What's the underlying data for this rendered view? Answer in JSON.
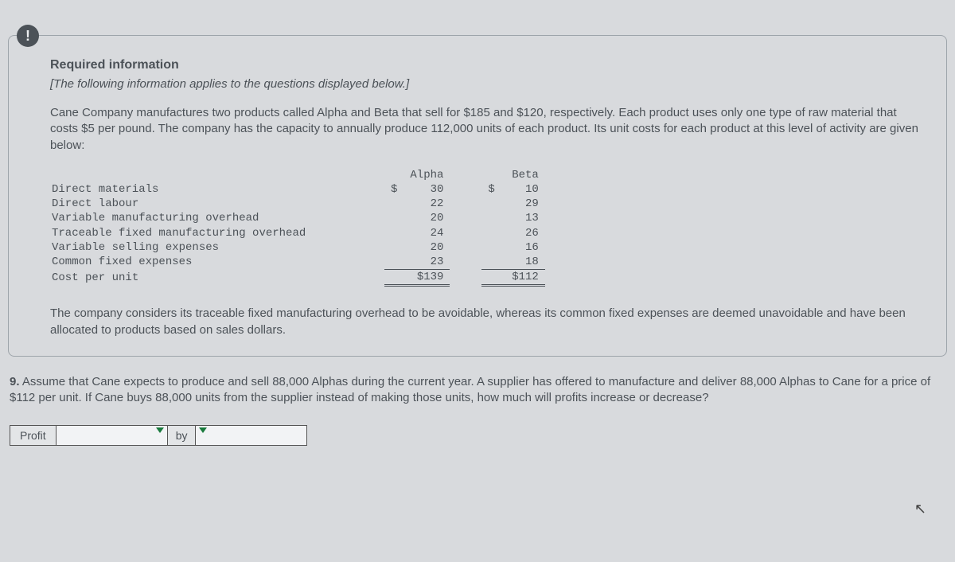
{
  "badge": "!",
  "required_title": "Required information",
  "subtitle": "[The following information applies to the questions displayed below.]",
  "narrative1": "Cane Company manufactures two products called Alpha and Beta that sell for $185 and $120, respectively. Each product uses only one type of raw material that costs $5 per pound. The company has the capacity to annually produce 112,000 units of each product. Its unit costs for each product at this level of activity are given below:",
  "narrative2": "The company considers its traceable fixed manufacturing overhead to be avoidable, whereas its common fixed expenses are deemed unavoidable and have been allocated to products based on sales dollars.",
  "table": {
    "headers": {
      "col1": "Alpha",
      "col2": "Beta"
    },
    "rows": [
      {
        "label": "Direct materials",
        "a_sym": "$",
        "a_num": "30",
        "b_sym": "$",
        "b_num": "10"
      },
      {
        "label": "Direct labour",
        "a_sym": "",
        "a_num": "22",
        "b_sym": "",
        "b_num": "29"
      },
      {
        "label": "Variable manufacturing overhead",
        "a_sym": "",
        "a_num": "20",
        "b_sym": "",
        "b_num": "13"
      },
      {
        "label": "Traceable fixed manufacturing overhead",
        "a_sym": "",
        "a_num": "24",
        "b_sym": "",
        "b_num": "26"
      },
      {
        "label": "Variable selling expenses",
        "a_sym": "",
        "a_num": "20",
        "b_sym": "",
        "b_num": "16"
      },
      {
        "label": "Common fixed expenses",
        "a_sym": "",
        "a_num": "23",
        "b_sym": "",
        "b_num": "18"
      }
    ],
    "total": {
      "label": "Cost per unit",
      "a_sym": "",
      "a_num": "$139",
      "b_sym": "",
      "b_num": "$112"
    }
  },
  "question_num": "9.",
  "question_text": "Assume that Cane expects to produce and sell 88,000 Alphas during the current year. A supplier has offered to manufacture and deliver 88,000 Alphas to Cane for a price of $112 per unit. If Cane buys 88,000 units from the supplier instead of making those units, how much will profits increase or decrease?",
  "answer": {
    "label": "Profit",
    "by": "by"
  }
}
